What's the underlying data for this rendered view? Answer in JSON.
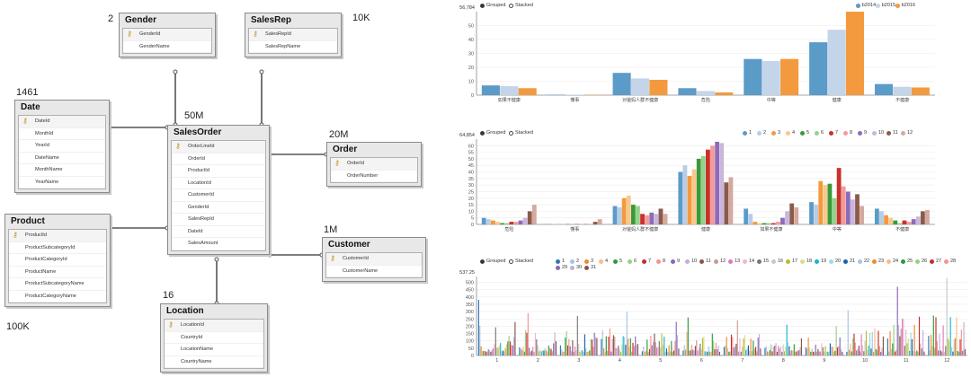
{
  "diagram": {
    "tables": {
      "gender": {
        "name": "Gender",
        "count": "2",
        "columns": [
          "GenderId",
          "GenderName"
        ]
      },
      "salesrep": {
        "name": "SalesRep",
        "count": "10K",
        "columns": [
          "SalesRepId",
          "SalesRepName"
        ]
      },
      "date": {
        "name": "Date",
        "count": "1461",
        "columns": [
          "DateId",
          "MonthId",
          "YearId",
          "DateName",
          "MonthName",
          "YearName"
        ]
      },
      "salesorder": {
        "name": "SalesOrder",
        "count": "50M",
        "columns": [
          "OrderLineId",
          "OrderId",
          "ProductId",
          "LocationId",
          "CustomerId",
          "GenderId",
          "SalesRepId",
          "DateId",
          "SalesAmount"
        ]
      },
      "order": {
        "name": "Order",
        "count": "20M",
        "columns": [
          "OrderId",
          "OrderNumber"
        ]
      },
      "product": {
        "name": "Product",
        "count": "100K",
        "columns": [
          "ProductId",
          "ProductSubcategoryId",
          "ProductCategoryId",
          "ProductName",
          "ProductSubcategoryName",
          "ProductCategoryName"
        ]
      },
      "customer": {
        "name": "Customer",
        "count": "1M",
        "columns": [
          "CustomerId",
          "CustomerName"
        ]
      },
      "location": {
        "name": "Location",
        "count": "16",
        "columns": [
          "LocationId",
          "CountryId",
          "LocationName",
          "CountryName"
        ]
      }
    }
  },
  "controls": {
    "grouped": "Grouped",
    "stacked": "Stacked"
  },
  "chart_data": [
    {
      "type": "bar",
      "max_label": "56,784",
      "ylim": [
        0,
        60
      ],
      "yticks": [
        0,
        10,
        20,
        30,
        40,
        50
      ],
      "categories": [
        "如果不健康",
        "懂事",
        "对爸妈人群不健康",
        "危险",
        "中等",
        "健康",
        "不健康"
      ],
      "series": [
        {
          "name": "b2014",
          "color": "#5b9bc8",
          "values": [
            7,
            0.3,
            16,
            5,
            26,
            38,
            8
          ]
        },
        {
          "name": "b2015",
          "color": "#c4d5ea",
          "values": [
            6.5,
            0.3,
            12,
            3,
            24.5,
            47,
            6
          ]
        },
        {
          "name": "b2016",
          "color": "#f39a3e",
          "values": [
            5,
            0.2,
            11,
            2,
            26,
            60,
            5.5
          ]
        }
      ],
      "legend_position": "top-right"
    },
    {
      "type": "bar",
      "max_label": "64,854",
      "ylim": [
        0,
        65
      ],
      "yticks": [
        0,
        5,
        10,
        15,
        20,
        25,
        30,
        35,
        40,
        45,
        50,
        55,
        60
      ],
      "categories": [
        "危险",
        "懂事",
        "对爸妈人群不健康",
        "健康",
        "如果不健康",
        "中等",
        "不健康"
      ],
      "series": [
        {
          "name": "1",
          "color": "#5b9bc8",
          "values": [
            5,
            0.3,
            14,
            40,
            12,
            17,
            12
          ]
        },
        {
          "name": "2",
          "color": "#b7cde6",
          "values": [
            4,
            0.3,
            13,
            45,
            8,
            15,
            10
          ]
        },
        {
          "name": "3",
          "color": "#f39a3e",
          "values": [
            3,
            0.3,
            20,
            37,
            2,
            33,
            7
          ]
        },
        {
          "name": "4",
          "color": "#f8c88e",
          "values": [
            2,
            0.2,
            22,
            42,
            1,
            30,
            5
          ]
        },
        {
          "name": "5",
          "color": "#3a9a3a",
          "values": [
            1,
            0.2,
            15,
            50,
            1,
            31,
            3
          ]
        },
        {
          "name": "6",
          "color": "#95d28a",
          "values": [
            1,
            0.2,
            14,
            52,
            1,
            20,
            1
          ]
        },
        {
          "name": "7",
          "color": "#c9302c",
          "values": [
            2,
            0.2,
            8,
            57,
            1,
            43,
            3
          ]
        },
        {
          "name": "8",
          "color": "#f39b98",
          "values": [
            2,
            0.3,
            7,
            60,
            2,
            29,
            2
          ]
        },
        {
          "name": "9",
          "color": "#8e6bb8",
          "values": [
            3,
            0.3,
            9,
            63,
            5,
            25,
            4
          ]
        },
        {
          "name": "10",
          "color": "#c9b6dd",
          "values": [
            5,
            0.4,
            8,
            62,
            10,
            19,
            6
          ]
        },
        {
          "name": "11",
          "color": "#8a5b4b",
          "values": [
            10,
            2,
            12,
            32,
            16,
            23,
            10
          ]
        },
        {
          "name": "12",
          "color": "#d4a9a0",
          "values": [
            15,
            4,
            8,
            36,
            13,
            14,
            11
          ]
        }
      ],
      "legend_position": "top-right"
    },
    {
      "type": "bar",
      "max_label": "537.25",
      "ylim": [
        0,
        540
      ],
      "yticks": [
        0,
        50,
        100,
        150,
        200,
        250,
        300,
        350,
        400,
        450,
        500
      ],
      "categories": [
        "1",
        "2",
        "3",
        "4",
        "5",
        "6",
        "7",
        "8",
        "9",
        "10",
        "11",
        "12"
      ],
      "series_names": [
        "1",
        "2",
        "3",
        "4",
        "5",
        "6",
        "7",
        "8",
        "9",
        "10",
        "11",
        "12",
        "13",
        "14",
        "15",
        "16",
        "17",
        "18",
        "19",
        "20",
        "21",
        "22",
        "23",
        "24",
        "25",
        "26",
        "27",
        "28",
        "29",
        "30",
        "31"
      ],
      "series_colors": [
        "#2d77b8",
        "#a6c4e2",
        "#f2892e",
        "#f7be85",
        "#2e9a3c",
        "#93d286",
        "#c92d2c",
        "#f3958f",
        "#8b67b6",
        "#c3b0d8",
        "#85564a",
        "#c59c94",
        "#e077c1",
        "#f3b5d3",
        "#777777",
        "#c7c7c7",
        "#b9bc2a",
        "#dbdb8e",
        "#1ab5c8",
        "#9edae4",
        "#1b5fa7",
        "#a6c4e2",
        "#f2892e",
        "#f7be85",
        "#2e9a3c",
        "#93d286",
        "#c92d2c",
        "#f3958f",
        "#8b67b6",
        "#c3b0d8",
        "#85564a"
      ],
      "group_max": [
        380,
        290,
        270,
        300,
        230,
        260,
        240,
        210,
        200,
        310,
        470,
        530
      ],
      "legend_position": "top-left"
    }
  ]
}
